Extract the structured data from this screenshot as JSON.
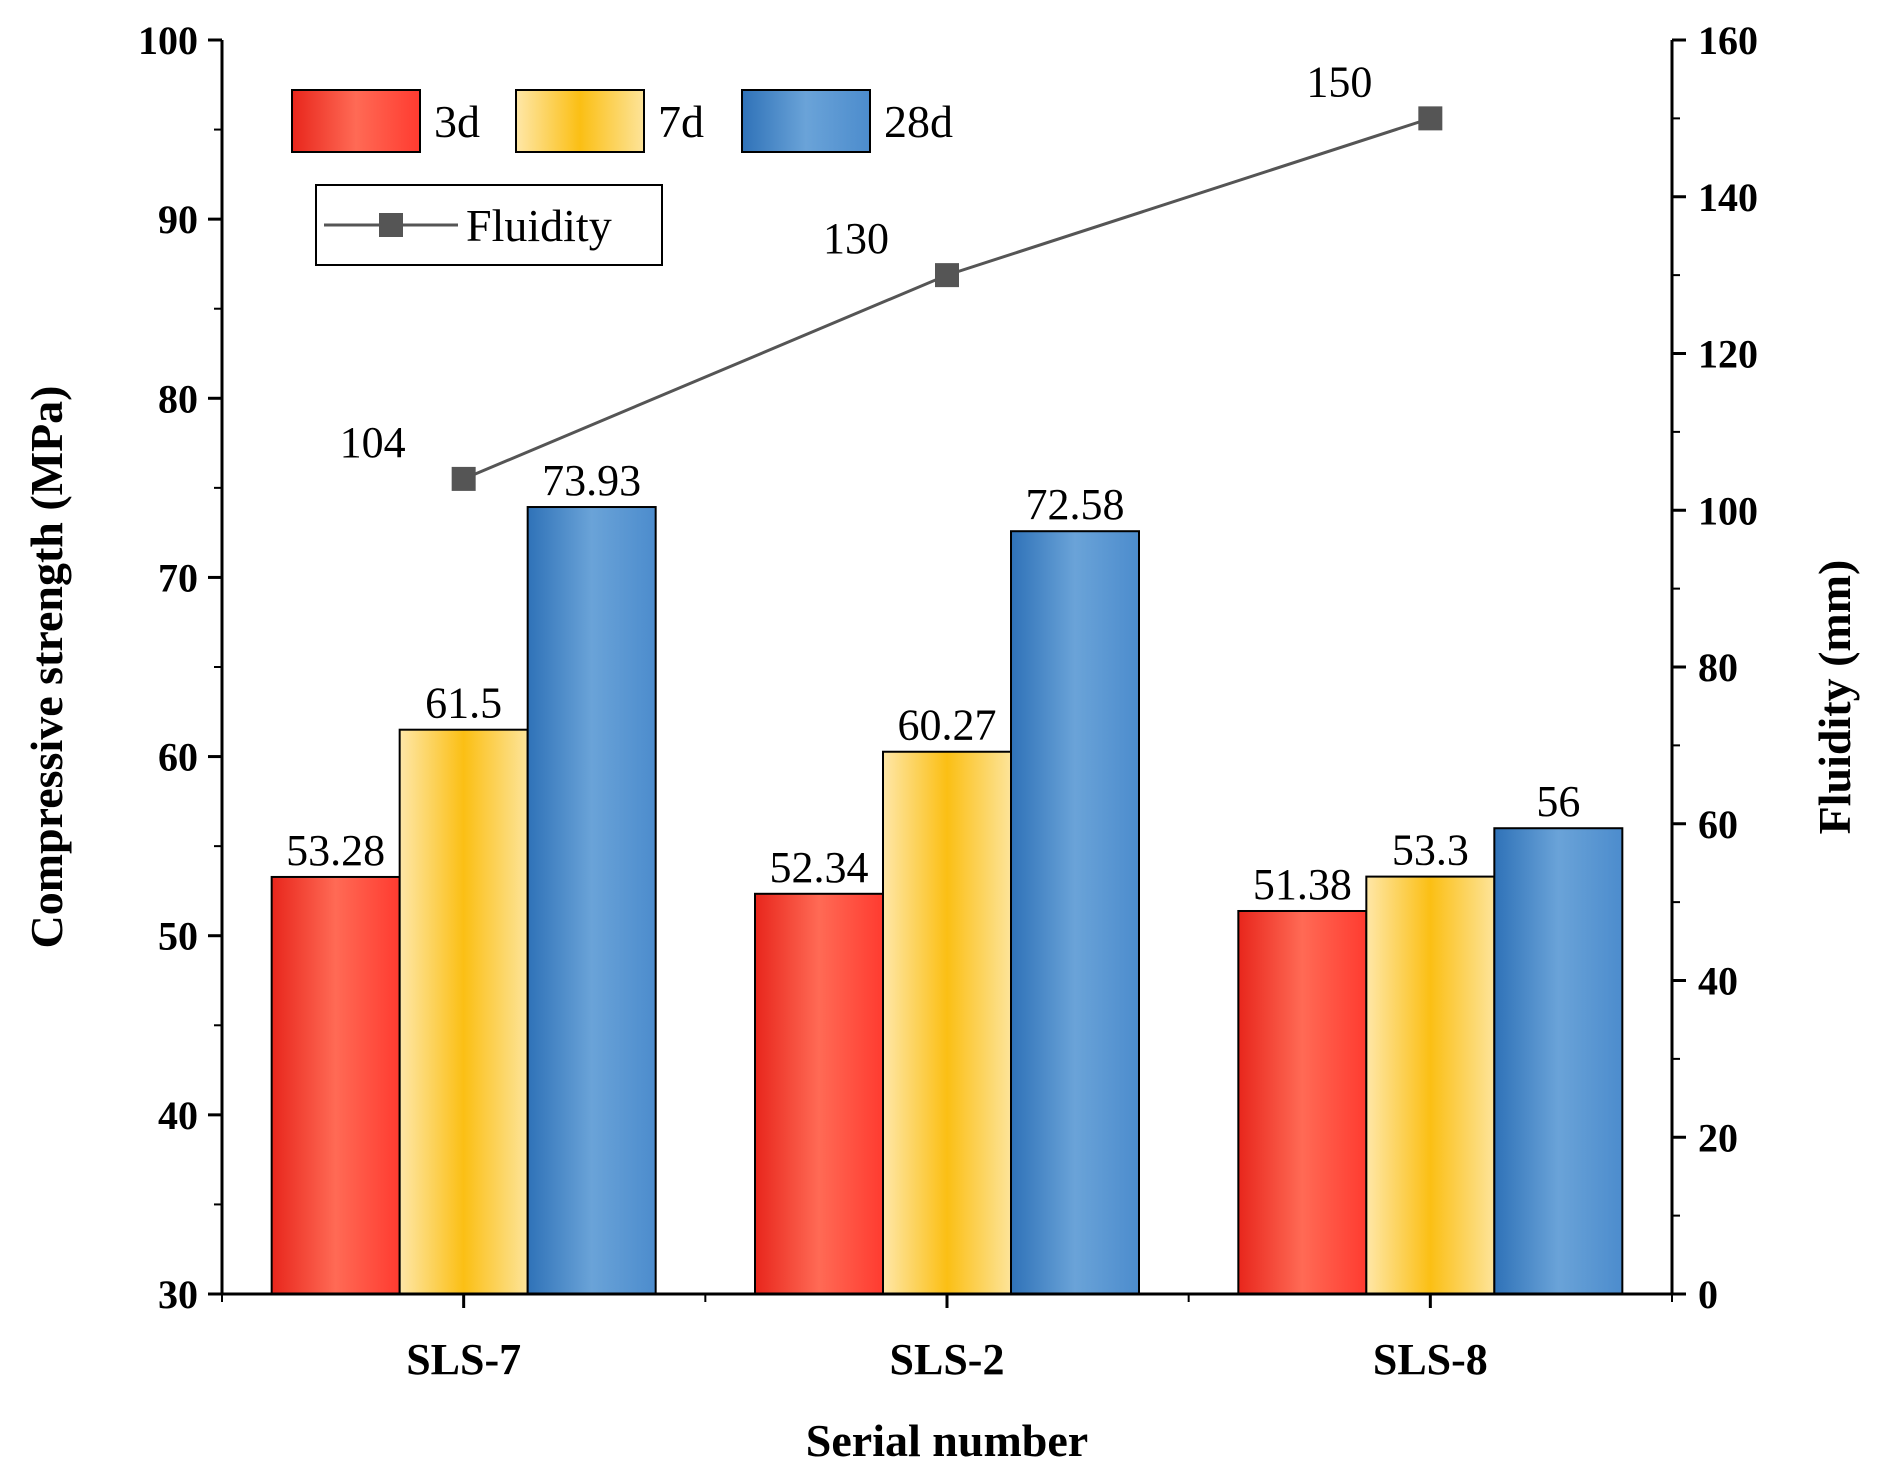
{
  "chart_data": {
    "type": "bar",
    "categories": [
      "SLS-7",
      "SLS-2",
      "SLS-8"
    ],
    "xlabel": "Serial number",
    "ylabel": "Compressive strength (MPa)",
    "ylim": [
      30,
      100
    ],
    "y_ticks": [
      30,
      40,
      50,
      60,
      70,
      80,
      90,
      100
    ],
    "y2label": "Fluidity (mm)",
    "y2lim": [
      0,
      160
    ],
    "y2_ticks": [
      0,
      20,
      40,
      60,
      80,
      100,
      120,
      140,
      160
    ],
    "series": [
      {
        "name": "3d",
        "values": [
          53.28,
          52.34,
          51.38
        ],
        "labels": [
          "53.28",
          "52.34",
          "51.38"
        ],
        "colors": [
          "#ff3b30",
          "#ff6a55",
          "#e8261c"
        ]
      },
      {
        "name": "7d",
        "values": [
          61.5,
          60.27,
          53.3
        ],
        "labels": [
          "61.5",
          "60.27",
          "53.3"
        ],
        "colors": [
          "#fde49a",
          "#fbbf14",
          "#fee7a8"
        ]
      },
      {
        "name": "28d",
        "values": [
          73.93,
          72.58,
          56
        ],
        "labels": [
          "73.93",
          "72.58",
          "56"
        ],
        "colors": [
          "#4c8ccd",
          "#6aa3d8",
          "#2f72b8"
        ]
      }
    ],
    "line_series": {
      "name": "Fluidity",
      "axis": "right",
      "values": [
        104,
        130,
        150
      ],
      "labels": [
        "104",
        "130",
        "150"
      ],
      "color": "#555555"
    },
    "grid": false,
    "legend_position": "top-left"
  }
}
